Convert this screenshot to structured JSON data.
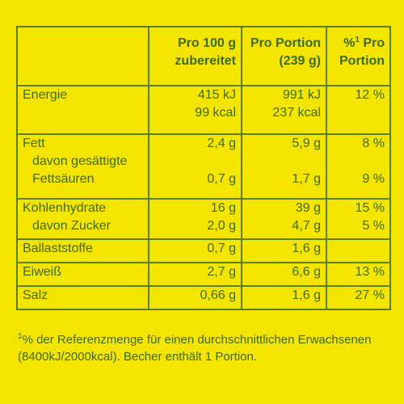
{
  "header": {
    "col2_line1": "Pro 100 g",
    "col2_line2": "zubereitet",
    "col3_line1": "Pro Portion",
    "col3_line2": "(239 g)",
    "col4_sup": "%",
    "col4_sup_num": "1",
    "col4_line1": "Pro",
    "col4_line2": "Portion"
  },
  "rows": {
    "energie": {
      "label": "Energie",
      "per100_kj": "415 kJ",
      "per100_kcal": "99 kcal",
      "portion_kj": "991 kJ",
      "portion_kcal": "237 kcal",
      "pct": "12 %"
    },
    "fett": {
      "label": "Fett",
      "per100": "2,4 g",
      "portion": "5,9 g",
      "pct": "8 %"
    },
    "fettsaeuren": {
      "label1": "davon gesättigte",
      "label2": "Fettsäuren",
      "per100": "0,7 g",
      "portion": "1,7 g",
      "pct": "9 %"
    },
    "kohlenhydrate": {
      "label": "Kohlenhydrate",
      "per100": "16 g",
      "portion": "39 g",
      "pct": "15 %"
    },
    "zucker": {
      "label": "davon Zucker",
      "per100": "2,0 g",
      "portion": "4,7 g",
      "pct": "5 %"
    },
    "ballaststoffe": {
      "label": "Ballaststoffe",
      "per100": "0,7 g",
      "portion": "1,6 g",
      "pct": ""
    },
    "eiweiss": {
      "label": "Eiweiß",
      "per100": "2,7 g",
      "portion": "6,6 g",
      "pct": "13 %"
    },
    "salz": {
      "label": "Salz",
      "per100": "0,66 g",
      "portion": "1,6 g",
      "pct": "27 %"
    }
  },
  "footnote": {
    "sup": "1",
    "line1": "% der Referenzmenge für einen durchschnittlichen Erwachsenen",
    "line2": "(8400kJ/2000kcal). Becher enthält 1 Portion."
  },
  "colors": {
    "background": "#f4e500",
    "text": "#3f6a14",
    "border": "#5d7f17"
  }
}
